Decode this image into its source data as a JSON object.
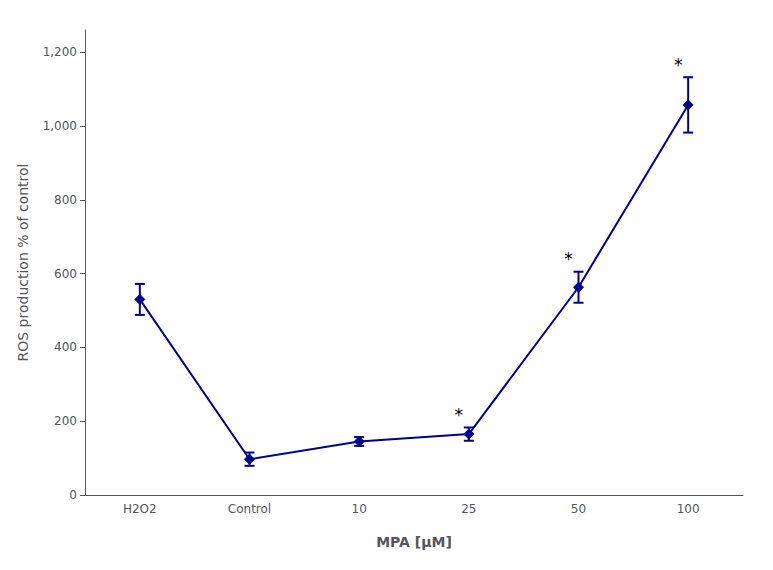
{
  "chart_data": {
    "type": "line",
    "categories": [
      "H2O2",
      "Control",
      "10",
      "25",
      "50",
      "100"
    ],
    "values": [
      530,
      97,
      145,
      165,
      563,
      1057
    ],
    "errors": [
      42,
      18,
      12,
      18,
      42,
      75
    ],
    "color": "#00008B",
    "marker": "diamond",
    "line_style": "solid",
    "xlabel": "MPA [μM]",
    "ylabel": "ROS production % of control",
    "ylim": [
      0,
      1260
    ],
    "yticks": [
      0,
      200,
      400,
      600,
      800,
      1000,
      1200
    ],
    "grid": false,
    "annotations": [
      {
        "text": "*",
        "x": "25"
      },
      {
        "text": "*",
        "x": "50"
      },
      {
        "text": "*",
        "x": "100"
      }
    ]
  }
}
